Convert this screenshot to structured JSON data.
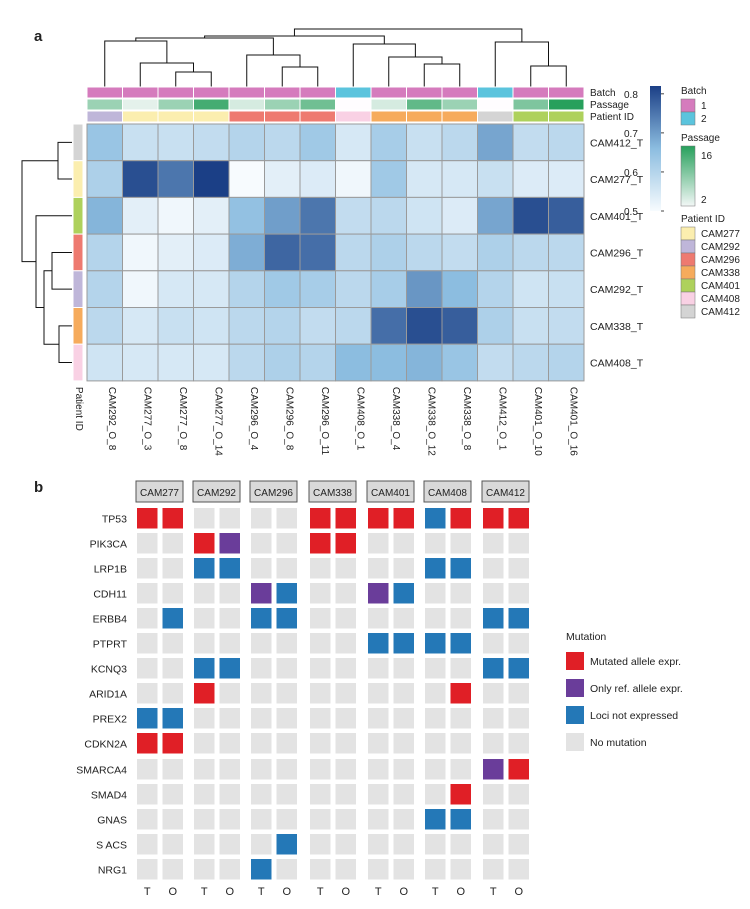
{
  "panel_a_label": "a",
  "panel_b_label": "b",
  "colors": {
    "heat_low": "#f7fbfe",
    "heat_mid": "#8cbde0",
    "heat_high": "#1b3f86",
    "grid": "#9a9a9a",
    "mutated": "#e01f26",
    "only_ref": "#6a3d9a",
    "loci_not_expr": "#2478b7",
    "no_mutation": "#e3e3e3"
  },
  "chart_data": [
    {
      "type": "heatmap",
      "title": "",
      "columns": [
        "CAM292_O_8",
        "CAM277_O_3",
        "CAM277_O_8",
        "CAM277_O_14",
        "CAM296_O_4",
        "CAM296_O_8",
        "CAM296_O_11",
        "CAM408_O_1",
        "CAM338_O_4",
        "CAM338_O_12",
        "CAM338_O_8",
        "CAM412_O_1",
        "CAM401_O_10",
        "CAM401_O_16"
      ],
      "rows": [
        "CAM412_T",
        "CAM277_T",
        "CAM401_T",
        "CAM296_T",
        "CAM292_T",
        "CAM338_T",
        "CAM408_T"
      ],
      "values": [
        [
          0.64,
          0.57,
          0.57,
          0.58,
          0.6,
          0.59,
          0.63,
          0.55,
          0.62,
          0.57,
          0.59,
          0.69,
          0.58,
          0.59
        ],
        [
          0.61,
          0.8,
          0.75,
          0.83,
          0.5,
          0.53,
          0.54,
          0.51,
          0.63,
          0.55,
          0.55,
          0.57,
          0.54,
          0.54
        ],
        [
          0.67,
          0.53,
          0.51,
          0.53,
          0.65,
          0.7,
          0.75,
          0.58,
          0.59,
          0.56,
          0.54,
          0.69,
          0.8,
          0.78
        ],
        [
          0.6,
          0.51,
          0.53,
          0.54,
          0.68,
          0.77,
          0.76,
          0.59,
          0.61,
          0.59,
          0.58,
          0.61,
          0.59,
          0.59
        ],
        [
          0.6,
          0.51,
          0.55,
          0.55,
          0.6,
          0.63,
          0.62,
          0.59,
          0.62,
          0.71,
          0.66,
          0.6,
          0.56,
          0.57
        ],
        [
          0.59,
          0.55,
          0.57,
          0.56,
          0.59,
          0.6,
          0.58,
          0.59,
          0.76,
          0.8,
          0.78,
          0.61,
          0.57,
          0.58
        ],
        [
          0.56,
          0.55,
          0.55,
          0.55,
          0.59,
          0.61,
          0.6,
          0.66,
          0.66,
          0.67,
          0.64,
          0.58,
          0.59,
          0.6
        ]
      ],
      "color_scale": {
        "min": 0.5,
        "max": 0.82,
        "ticks": [
          0.5,
          0.6,
          0.7,
          0.8
        ]
      },
      "column_annotations": {
        "labels": [
          "Batch",
          "Passage",
          "Patient ID"
        ],
        "batch": [
          1,
          1,
          1,
          1,
          1,
          1,
          1,
          2,
          1,
          1,
          1,
          2,
          1,
          1
        ],
        "passage": [
          8,
          3,
          8,
          14,
          4,
          8,
          11,
          1,
          4,
          12,
          8,
          1,
          10,
          16
        ],
        "patient_id": [
          "CAM292",
          "CAM277",
          "CAM277",
          "CAM277",
          "CAM296",
          "CAM296",
          "CAM296",
          "CAM408",
          "CAM338",
          "CAM338",
          "CAM338",
          "CAM412",
          "CAM401",
          "CAM401"
        ]
      },
      "row_annotation": {
        "label": "Patient ID",
        "patient_id": [
          "CAM412",
          "CAM277",
          "CAM401",
          "CAM296",
          "CAM292",
          "CAM338",
          "CAM408"
        ]
      },
      "legends": {
        "batch": {
          "title": "Batch",
          "items": [
            {
              "label": "1",
              "color": "#d57bbd"
            },
            {
              "label": "2",
              "color": "#5bc4dd"
            }
          ]
        },
        "passage": {
          "title": "Passage",
          "max_label": "16",
          "min_label": "2",
          "max_value": 16,
          "min_value": 2,
          "low_color": "#f2f7f6",
          "high_color": "#27a05c"
        },
        "patient": {
          "title": "Patient ID",
          "items": [
            {
              "label": "CAM277",
              "color": "#fbeeaf"
            },
            {
              "label": "CAM292",
              "color": "#bfb6d9"
            },
            {
              "label": "CAM296",
              "color": "#ee7a70"
            },
            {
              "label": "CAM338",
              "color": "#f6ab5c"
            },
            {
              "label": "CAM401",
              "color": "#aed15c"
            },
            {
              "label": "CAM408",
              "color": "#f9d1e4"
            },
            {
              "label": "CAM412",
              "color": "#d4d4d4"
            }
          ]
        }
      }
    },
    {
      "type": "table",
      "title": "",
      "patients": [
        "CAM277",
        "CAM292",
        "CAM296",
        "CAM338",
        "CAM401",
        "CAM408",
        "CAM412"
      ],
      "sample_types": [
        "T",
        "O"
      ],
      "genes": [
        "TP53",
        "PIK3CA",
        "LRP1B",
        "CDH11",
        "ERBB4",
        "PTPRT",
        "KCNQ3",
        "ARID1A",
        "PREX2",
        "CDKN2A",
        "SMARCA4",
        "SMAD4",
        "GNAS",
        "S ACS",
        "NRG1"
      ],
      "status_codes": {
        "M": "Mutated allele expr.",
        "R": "Only ref. allele expr.",
        "L": "Loci not expressed",
        "N": "No mutation"
      },
      "legend_title": "Mutation",
      "legend_order": [
        "M",
        "R",
        "L",
        "N"
      ],
      "status": [
        [
          "MMNNNNMMMMLMMM"
        ],
        [
          "NNMRNNMMNNNNNN"
        ],
        [
          "NNLLNNNNNNLLNN"
        ],
        [
          "NNNNRLNNRLNNNN"
        ],
        [
          "NLNNLLNNNNNNLL"
        ],
        [
          "NNNNNNNNLLLLNN"
        ],
        [
          "NNLLNNNNNNNNLL"
        ],
        [
          "NNMNNNNNNNNMNN"
        ],
        [
          "LLNNNNNNNNNNNN"
        ],
        [
          "MMNNNNNNNNNNNN"
        ],
        [
          "NNNNNNNNNNNNRM"
        ],
        [
          "NNNNNNNNNNNMNN"
        ],
        [
          "NNNNNNNNNNLLNN"
        ],
        [
          "NNNNNLNNNNNNNN"
        ],
        [
          "NNNNLNNNNNNNNN"
        ]
      ]
    }
  ]
}
